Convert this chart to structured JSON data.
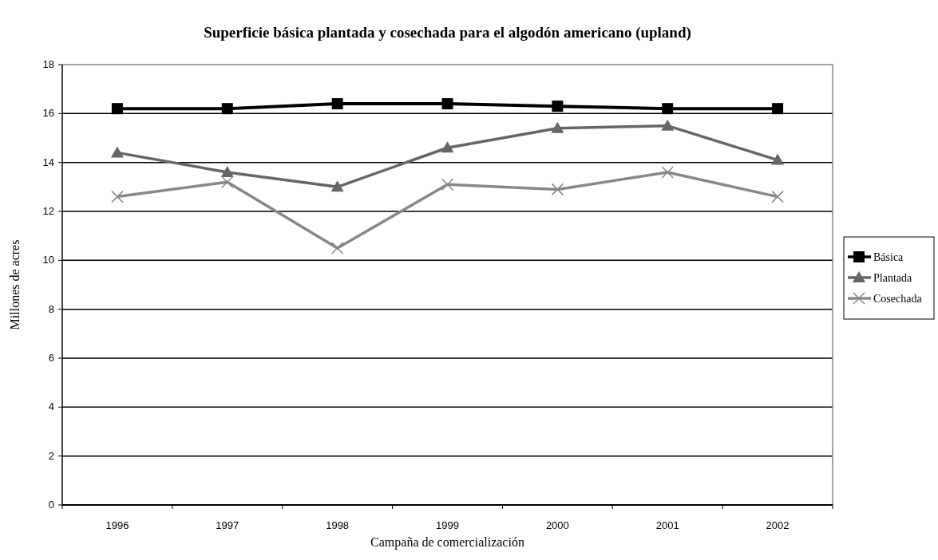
{
  "chart_data": {
    "type": "line",
    "title": "Superficie básica plantada y cosechada para el algodón americano (upland)",
    "xlabel": "Campaña de comercialización",
    "ylabel": "Millones de acres",
    "categories": [
      "1996",
      "1997",
      "1998",
      "1999",
      "2000",
      "2001",
      "2002"
    ],
    "series": [
      {
        "name": "Básica",
        "color": "#000000",
        "marker": "square",
        "values": [
          16.2,
          16.2,
          16.4,
          16.4,
          16.3,
          16.2,
          16.2
        ]
      },
      {
        "name": "Plantada",
        "color": "#666666",
        "marker": "triangle",
        "values": [
          14.4,
          13.6,
          13.0,
          14.6,
          15.4,
          15.5,
          14.1
        ]
      },
      {
        "name": "Cosechada",
        "color": "#888888",
        "marker": "cross",
        "values": [
          12.6,
          13.2,
          10.5,
          13.1,
          12.9,
          13.6,
          12.6
        ]
      }
    ],
    "ylim": [
      0,
      18
    ],
    "yticks": [
      0,
      2,
      4,
      6,
      8,
      10,
      12,
      14,
      16,
      18
    ],
    "grid": "y",
    "legend": "right"
  }
}
